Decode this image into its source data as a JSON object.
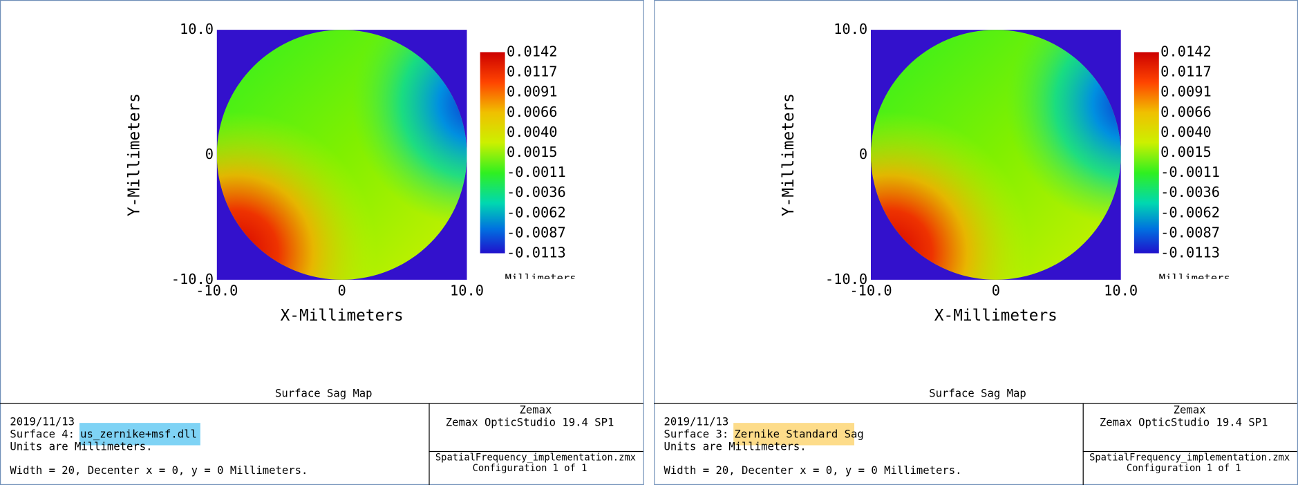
{
  "panels": [
    {
      "plot": {
        "xlabel": "X-Millimeters",
        "ylabel": "Y-Millimeters",
        "xticks": [
          "-10.0",
          "0",
          "10.0"
        ],
        "yticks": [
          "10.0",
          "0",
          "-10.0"
        ],
        "colorbar": [
          "0.0142",
          "0.0117",
          "0.0091",
          "0.0066",
          "0.0040",
          "0.0015",
          "-0.0011",
          "-0.0036",
          "-0.0062",
          "-0.0087",
          "-0.0113"
        ],
        "colorbar_unit": "Millimeters"
      },
      "title": "Surface Sag Map",
      "footer": {
        "date": "2019/11/13",
        "surface_prefix": "Surface 4:",
        "surface_name": "us_zernike+msf.dll",
        "units": "Units are Millimeters.",
        "width": "Width = 20, Decenter x = 0, y = 0 Millimeters.",
        "company": "Zemax",
        "product": "Zemax OpticStudio 19.4 SP1",
        "file": "SpatialFrequency_implementation.zmx",
        "config": "Configuration 1 of 1"
      },
      "highlight": "#7fd3f5"
    },
    {
      "plot": {
        "xlabel": "X-Millimeters",
        "ylabel": "Y-Millimeters",
        "xticks": [
          "-10.0",
          "0",
          "10.0"
        ],
        "yticks": [
          "10.0",
          "0",
          "-10.0"
        ],
        "colorbar": [
          "0.0142",
          "0.0117",
          "0.0091",
          "0.0066",
          "0.0040",
          "0.0015",
          "-0.0011",
          "-0.0036",
          "-0.0062",
          "-0.0087",
          "-0.0113"
        ],
        "colorbar_unit": "Millimeters"
      },
      "title": "Surface Sag Map",
      "footer": {
        "date": "2019/11/13",
        "surface_prefix": "Surface 3:",
        "surface_name": "Zernike Standard Sag",
        "units": "Units are Millimeters.",
        "width": "Width = 20, Decenter x = 0, y = 0 Millimeters.",
        "company": "Zemax",
        "product": "Zemax OpticStudio 19.4 SP1",
        "file": "SpatialFrequency_implementation.zmx",
        "config": "Configuration 1 of 1"
      },
      "highlight": "#fddc8a"
    }
  ]
}
